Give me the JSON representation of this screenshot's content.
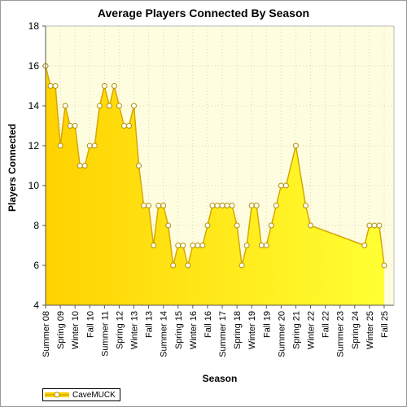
{
  "chart_data": {
    "type": "area",
    "title": "Average Players Connected By Season",
    "xlabel": "Season",
    "ylabel": "Players Connected",
    "ylim": [
      4,
      18
    ],
    "yticks": [
      4,
      6,
      8,
      10,
      12,
      14,
      16,
      18
    ],
    "xrange": [
      0,
      71
    ],
    "xtick_labels": [
      {
        "x": 0,
        "label": "Summer 08"
      },
      {
        "x": 3,
        "label": "Spring 09"
      },
      {
        "x": 6,
        "label": "Winter 10"
      },
      {
        "x": 9,
        "label": "Fall 10"
      },
      {
        "x": 12,
        "label": "Summer 11"
      },
      {
        "x": 15,
        "label": "Spring 12"
      },
      {
        "x": 18,
        "label": "Winter 13"
      },
      {
        "x": 21,
        "label": "Fall 13"
      },
      {
        "x": 24,
        "label": "Summer 14"
      },
      {
        "x": 27,
        "label": "Spring 15"
      },
      {
        "x": 30,
        "label": "Winter 16"
      },
      {
        "x": 33,
        "label": "Fall 16"
      },
      {
        "x": 36,
        "label": "Summer 17"
      },
      {
        "x": 39,
        "label": "Spring 18"
      },
      {
        "x": 42,
        "label": "Winter 19"
      },
      {
        "x": 45,
        "label": "Fall 19"
      },
      {
        "x": 48,
        "label": "Summer 20"
      },
      {
        "x": 51,
        "label": "Spring 21"
      },
      {
        "x": 54,
        "label": "Winter 22"
      },
      {
        "x": 57,
        "label": "Fall 22"
      },
      {
        "x": 60,
        "label": "Summer 23"
      },
      {
        "x": 63,
        "label": "Spring 24"
      },
      {
        "x": 66,
        "label": "Winter 25"
      },
      {
        "x": 69,
        "label": "Fall 25"
      }
    ],
    "series": [
      {
        "name": "CaveMUCK",
        "points": [
          [
            0,
            16
          ],
          [
            1,
            15
          ],
          [
            2,
            15
          ],
          [
            3,
            12
          ],
          [
            4,
            14
          ],
          [
            5,
            13
          ],
          [
            6,
            13
          ],
          [
            7,
            11
          ],
          [
            8,
            11
          ],
          [
            9,
            12
          ],
          [
            10,
            12
          ],
          [
            11,
            14
          ],
          [
            12,
            15
          ],
          [
            13,
            14
          ],
          [
            14,
            15
          ],
          [
            15,
            14
          ],
          [
            16,
            13
          ],
          [
            17,
            13
          ],
          [
            18,
            14
          ],
          [
            19,
            11
          ],
          [
            20,
            9
          ],
          [
            21,
            9
          ],
          [
            22,
            7
          ],
          [
            23,
            9
          ],
          [
            24,
            9
          ],
          [
            25,
            8
          ],
          [
            26,
            6
          ],
          [
            27,
            7
          ],
          [
            28,
            7
          ],
          [
            29,
            6
          ],
          [
            30,
            7
          ],
          [
            31,
            7
          ],
          [
            32,
            7
          ],
          [
            33,
            8
          ],
          [
            34,
            9
          ],
          [
            35,
            9
          ],
          [
            36,
            9
          ],
          [
            37,
            9
          ],
          [
            38,
            9
          ],
          [
            39,
            8
          ],
          [
            40,
            6
          ],
          [
            41,
            7
          ],
          [
            42,
            9
          ],
          [
            43,
            9
          ],
          [
            44,
            7
          ],
          [
            45,
            7
          ],
          [
            46,
            8
          ],
          [
            47,
            9
          ],
          [
            48,
            10
          ],
          [
            49,
            10
          ],
          [
            51,
            12
          ],
          [
            53,
            9
          ],
          [
            54,
            8
          ],
          [
            65,
            7
          ],
          [
            66,
            8
          ],
          [
            67,
            8
          ],
          [
            68,
            8
          ],
          [
            69,
            6
          ]
        ]
      }
    ],
    "grid": true,
    "legend_position": "bottom-left",
    "colors": {
      "fill_top": "#ffd200",
      "fill_bottom": "#ffff33",
      "line": "#d4a800",
      "marker_fill": "#ffffff",
      "marker_stroke": "#b38f00",
      "plot_bg": "#fffde0",
      "grid": "#d8d8b0"
    }
  }
}
